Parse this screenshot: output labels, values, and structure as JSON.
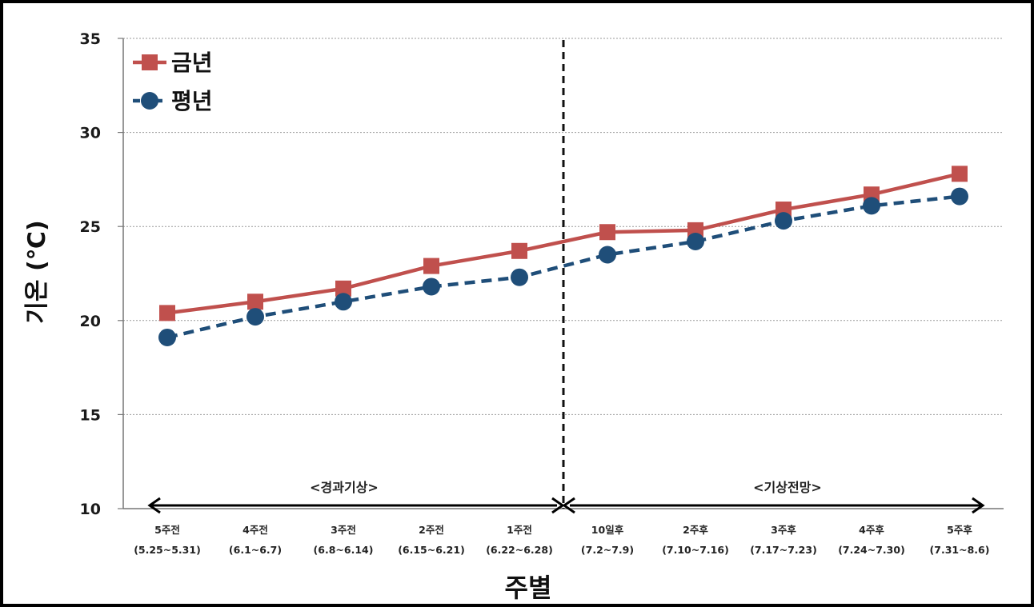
{
  "chart_data": {
    "type": "line",
    "title": "",
    "xlabel": "주별",
    "ylabel": "기온 (℃)",
    "ylim": [
      10,
      35
    ],
    "yticks": [
      10,
      15,
      20,
      25,
      30,
      35
    ],
    "grid": true,
    "legend_position": "top-left",
    "categories": [
      {
        "week": "5주전",
        "range": "(5.25~5.31)"
      },
      {
        "week": "4주전",
        "range": "(6.1~6.7)"
      },
      {
        "week": "3주전",
        "range": "(6.8~6.14)"
      },
      {
        "week": "2주전",
        "range": "(6.15~6.21)"
      },
      {
        "week": "1주전",
        "range": "(6.22~6.28)"
      },
      {
        "week": "10일후",
        "range": "(7.2~7.9)"
      },
      {
        "week": "2주후",
        "range": "(7.10~7.16)"
      },
      {
        "week": "3주후",
        "range": "(7.17~7.23)"
      },
      {
        "week": "4주후",
        "range": "(7.24~7.30)"
      },
      {
        "week": "5주후",
        "range": "(7.31~8.6)"
      }
    ],
    "series": [
      {
        "name": "금년",
        "color": "#c0504d",
        "marker": "square",
        "line_style": "solid",
        "values": [
          20.4,
          21.0,
          21.7,
          22.9,
          23.7,
          24.7,
          24.8,
          25.9,
          26.7,
          27.8
        ]
      },
      {
        "name": "평년",
        "color": "#1f4e79",
        "marker": "circle",
        "line_style": "dashed",
        "values": [
          19.1,
          20.2,
          21.0,
          21.8,
          22.3,
          23.5,
          24.2,
          25.3,
          26.1,
          26.6
        ]
      }
    ],
    "annotations": {
      "past_label": "<경과기상>",
      "forecast_label": "<기상전망>"
    }
  }
}
